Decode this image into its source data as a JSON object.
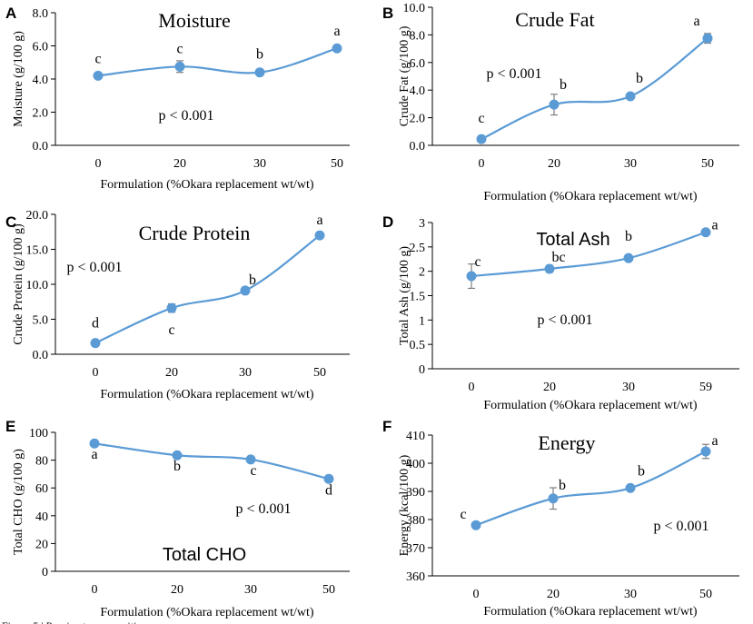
{
  "colors": {
    "series": "#5b9bd5",
    "marker": "#5b9bd5",
    "axis": "#000000",
    "errorbar": "#7f7f7f"
  },
  "caption_fragment": "Figure 5 | Proximate composition ...",
  "chart_data": [
    {
      "panel_letter": "A",
      "type": "line",
      "title": "Moisture",
      "title_font": "serif",
      "ylabel": "Moisture (g/100 g)",
      "xlabel": "Formulation (%Okara replacement wt/wt)",
      "categories": [
        "0",
        "20",
        "30",
        "50"
      ],
      "values": [
        4.2,
        4.75,
        4.4,
        5.85
      ],
      "errors": [
        0.1,
        0.35,
        0.1,
        0.1
      ],
      "letters": [
        "c",
        "c",
        "b",
        "a"
      ],
      "ylim": [
        0,
        8
      ],
      "yticks": [
        "0.0",
        "2.0",
        "4.0",
        "6.0",
        "8.0"
      ],
      "annotation": "p < 0.001"
    },
    {
      "panel_letter": "B",
      "type": "line",
      "title": "Crude Fat",
      "title_font": "serif",
      "ylabel": "Crude Fat (g/100 g)",
      "xlabel": "Formulation (%Okara replacement wt/wt)",
      "categories": [
        "0",
        "20",
        "30",
        "50"
      ],
      "values": [
        0.45,
        2.95,
        3.55,
        7.75
      ],
      "errors": [
        0.15,
        0.75,
        0.15,
        0.35
      ],
      "letters": [
        "c",
        "b",
        "b",
        "a"
      ],
      "ylim": [
        0,
        10
      ],
      "yticks": [
        "0.0",
        "2.0",
        "4.0",
        "6.0",
        "8.0",
        "10.0"
      ],
      "annotation": "p < 0.001"
    },
    {
      "panel_letter": "C",
      "type": "line",
      "title": "Crude Protein",
      "title_font": "serif",
      "ylabel": "Crude Protein (g/100 g)",
      "xlabel": "Formulation (%Okara replacement wt/wt)",
      "categories": [
        "0",
        "20",
        "30",
        "50"
      ],
      "values": [
        1.6,
        6.6,
        9.1,
        17.0
      ],
      "errors": [
        0.3,
        0.6,
        0.4,
        0.3
      ],
      "letters": [
        "d",
        "c",
        "b",
        "a"
      ],
      "ylim": [
        0,
        20
      ],
      "yticks": [
        "0.0",
        "5.0",
        "10.0",
        "15.0",
        "20.0"
      ],
      "annotation": "p < 0.001"
    },
    {
      "panel_letter": "D",
      "type": "line",
      "title": "Total Ash",
      "title_font": "sans",
      "ylabel": "Total Ash (g/100 g)",
      "xlabel": "Formulation (%Okara replacement wt/wt)",
      "categories": [
        "0",
        "20",
        "30",
        "59"
      ],
      "values": [
        1.9,
        2.05,
        2.27,
        2.8
      ],
      "errors": [
        0.25,
        0.07,
        0.04,
        0.03
      ],
      "letters": [
        "c",
        "bc",
        "b",
        "a"
      ],
      "ylim": [
        0,
        3
      ],
      "yticks": [
        "0",
        "0.5",
        "1",
        "1.5",
        "2",
        "2.5",
        "3"
      ],
      "annotation": "p < 0.001"
    },
    {
      "panel_letter": "E",
      "type": "line",
      "title": "Total CHO",
      "title_font": "sans",
      "ylabel": "Total CHO (g/100 g)",
      "xlabel": "Formulation (%Okara replacement wt/wt)",
      "categories": [
        "0",
        "20",
        "30",
        "50"
      ],
      "values": [
        92,
        83.5,
        80.5,
        66.5
      ],
      "errors": [
        0.5,
        0.5,
        0.5,
        0.5
      ],
      "letters": [
        "a",
        "b",
        "c",
        "d"
      ],
      "ylim": [
        0,
        100
      ],
      "yticks": [
        "0",
        "20",
        "40",
        "60",
        "80",
        "100"
      ],
      "annotation": "p < 0.001"
    },
    {
      "panel_letter": "F",
      "type": "line",
      "title": "Energy",
      "title_font": "serif",
      "ylabel": "Energy (kcal/100 g)",
      "xlabel": "Formulation (%Okara replacement wt/wt)",
      "categories": [
        "0",
        "20",
        "30",
        "50"
      ],
      "values": [
        378,
        387.5,
        391.2,
        404.2
      ],
      "errors": [
        0.8,
        3.8,
        0.6,
        2.5
      ],
      "letters": [
        "c",
        "b",
        "b",
        "a"
      ],
      "ylim": [
        360,
        410
      ],
      "yticks": [
        "360",
        "370",
        "380",
        "390",
        "400",
        "410"
      ],
      "annotation": "p < 0.001"
    }
  ]
}
